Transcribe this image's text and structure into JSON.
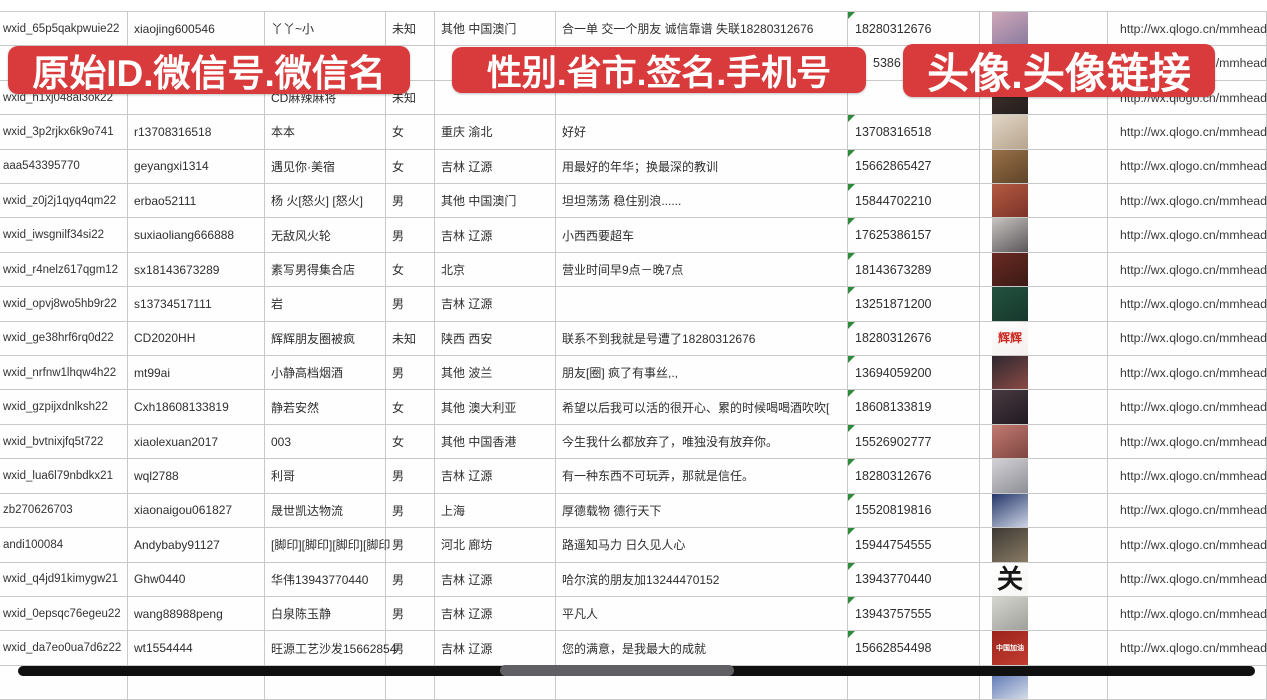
{
  "banners": {
    "background": "#d93b3c",
    "text_color": "#ffffff",
    "left": {
      "label": "原始ID.微信号.微信名"
    },
    "middle": {
      "label": "性别.省市.签名.手机号"
    },
    "right": {
      "label": "头像.头像链接"
    }
  },
  "footer": {
    "bar_color": "#101010",
    "thumb_color": "#5f5f64"
  },
  "table": {
    "rows": [
      {
        "original_id": "wxid_65p5qakpwuie22",
        "wechat_no": "xiaojing600546",
        "wechat_name": "丫丫~小",
        "gender": "未知",
        "province_city": "其他 中国澳门",
        "signature": "合一单 交一个朋友 诚信靠谱 失联18280312676",
        "phone": "18280312676",
        "phone_flag": true,
        "avatar_link": "http://wx.qlogo.cn/mmhead",
        "avatar": {
          "c1": "#cfa8b8",
          "c2": "#8a7aa0"
        }
      },
      {
        "original_id": "",
        "wechat_no": "",
        "wechat_name": "",
        "gender": "",
        "province_city": "",
        "signature": "",
        "phone": "5386",
        "phone_flag": false,
        "phone_indent": 18,
        "avatar_link": "http://wx.qlogo.cn/mmhead",
        "avatar": {
          "c1": "#a8c0dc",
          "c2": "#eef2f8"
        }
      },
      {
        "original_id": "wxid_h1xj048al3ok22",
        "wechat_no": "",
        "wechat_name": "CD麻辣麻将",
        "gender": "未知",
        "province_city": "",
        "signature": "",
        "phone": "",
        "phone_flag": false,
        "avatar_link": "http://wx.qlogo.cn/mmhead",
        "avatar": {
          "c1": "#41342e",
          "c2": "#241d1c"
        }
      },
      {
        "original_id": "wxid_3p2rjkx6k9o741",
        "wechat_no": "r13708316518",
        "wechat_name": "本本",
        "gender": "女",
        "province_city": "重庆 渝北",
        "signature": "好好",
        "phone": "13708316518",
        "phone_flag": true,
        "avatar_link": "http://wx.qlogo.cn/mmhead",
        "avatar": {
          "c1": "#e2d6c6",
          "c2": "#b6a48e"
        }
      },
      {
        "original_id": "aaa543395770",
        "wechat_no": "geyangxi1314",
        "wechat_name": "遇见你·美宿",
        "gender": "女",
        "province_city": "吉林 辽源",
        "signature": "用最好的年华；换最深的教训",
        "phone": "15662865427",
        "phone_flag": true,
        "avatar_link": "http://wx.qlogo.cn/mmhead",
        "avatar": {
          "c1": "#9a7048",
          "c2": "#5e4428"
        }
      },
      {
        "original_id": "wxid_z0j2j1qyq4qm22",
        "wechat_no": "erbao52111",
        "wechat_name": "杨 火[怒火] [怒火]",
        "gender": "男",
        "province_city": "其他 中国澳门",
        "signature": "坦坦荡荡 稳住别浪......",
        "phone": "15844702210",
        "phone_flag": true,
        "avatar_link": "http://wx.qlogo.cn/mmhead",
        "avatar": {
          "c1": "#b55a42",
          "c2": "#7c3328"
        }
      },
      {
        "original_id": "wxid_iwsgnilf34si22",
        "wechat_no": "suxiaoliang666888",
        "wechat_name": "无敌风火轮",
        "gender": "男",
        "province_city": "吉林 辽源",
        "signature": "小西西要超车",
        "phone": "17625386157",
        "phone_flag": true,
        "avatar_link": "http://wx.qlogo.cn/mmhead",
        "avatar": {
          "c1": "#c8c4c0",
          "c2": "#5a565a"
        }
      },
      {
        "original_id": "wxid_r4nelz617qgm12",
        "wechat_no": "sx18143673289",
        "wechat_name": "素写男得集合店",
        "gender": "女",
        "province_city": "北京",
        "signature": "营业时间早9点－晚7点",
        "phone": "18143673289",
        "phone_flag": true,
        "avatar_link": "http://wx.qlogo.cn/mmhead",
        "avatar": {
          "c1": "#6a2a22",
          "c2": "#3c1a16"
        }
      },
      {
        "original_id": "wxid_opvj8wo5hb9r22",
        "wechat_no": "s13734517111",
        "wechat_name": "岩",
        "gender": "男",
        "province_city": "吉林 辽源",
        "signature": "",
        "phone": "13251871200",
        "phone_flag": true,
        "avatar_link": "http://wx.qlogo.cn/mmhead",
        "avatar": {
          "c1": "#235240",
          "c2": "#16382c"
        }
      },
      {
        "original_id": "wxid_ge38hrf6rq0d22",
        "wechat_no": "CD2020HH",
        "wechat_name": "辉辉朋友圈被疯",
        "gender": "未知",
        "province_city": "陕西 西安",
        "signature": "联系不到我就是号遭了18280312676",
        "phone": "18280312676",
        "phone_flag": true,
        "avatar_link": "http://wx.qlogo.cn/mmhead",
        "avatar": {
          "c1": "#ffffff",
          "c2": "#f4f0ee",
          "label": "辉辉",
          "label_color": "#cc2a22",
          "label_size": 12
        }
      },
      {
        "original_id": "wxid_nrfnw1lhqw4h22",
        "wechat_no": "mt99ai",
        "wechat_name": "小静高档烟酒",
        "gender": "男",
        "province_city": "其他 波兰",
        "signature": "朋友[圈] 疯了有事丝,.,",
        "phone": "13694059200",
        "phone_flag": true,
        "avatar_link": "http://wx.qlogo.cn/mmhead",
        "avatar": {
          "c1": "#2e2830",
          "c2": "#8a4a44"
        }
      },
      {
        "original_id": "wxid_gzpijxdnlksh22",
        "wechat_no": "Cxh18608133819",
        "wechat_name": "静若安然",
        "gender": "女",
        "province_city": "其他 澳大利亚",
        "signature": "希望以后我可以活的很开心、累的时候喝喝酒吹吹[",
        "phone": "18608133819",
        "phone_flag": true,
        "avatar_link": "http://wx.qlogo.cn/mmhead",
        "avatar": {
          "c1": "#4a3a42",
          "c2": "#201a20"
        }
      },
      {
        "original_id": "wxid_bvtnixjfq5t722",
        "wechat_no": "xiaolexuan2017",
        "wechat_name": "003",
        "gender": "女",
        "province_city": "其他 中国香港",
        "signature": "今生我什么都放弃了，唯独没有放弃你。",
        "phone": "15526902777",
        "phone_flag": true,
        "avatar_link": "http://wx.qlogo.cn/mmhead",
        "avatar": {
          "c1": "#c27a72",
          "c2": "#7e4640"
        }
      },
      {
        "original_id": "wxid_lua6l79nbdkx21",
        "wechat_no": "wql2788",
        "wechat_name": "利哥",
        "gender": "男",
        "province_city": "吉林 辽源",
        "signature": "有一种东西不可玩弄，那就是信任。",
        "phone": "18280312676",
        "phone_flag": true,
        "avatar_link": "http://wx.qlogo.cn/mmhead",
        "avatar": {
          "c1": "#d2d2d6",
          "c2": "#8e8e96"
        }
      },
      {
        "original_id": "zb270626703",
        "wechat_no": "xiaonaigou061827",
        "wechat_name": "晟世凯达物流",
        "gender": "男",
        "province_city": "上海",
        "signature": "厚德载物 德行天下",
        "phone": "15520819816",
        "phone_flag": true,
        "avatar_link": "http://wx.qlogo.cn/mmhead",
        "avatar": {
          "c1": "#24366a",
          "c2": "#cdd4e4"
        }
      },
      {
        "original_id": "andi100084",
        "wechat_no": "Andybaby91127",
        "wechat_name": "[脚印][脚印][脚印][脚印",
        "gender": "男",
        "province_city": "河北 廊坊",
        "signature": "路遥知马力 日久见人心",
        "phone": "15944754555",
        "phone_flag": true,
        "avatar_link": "http://wx.qlogo.cn/mmhead",
        "avatar": {
          "c1": "#3c3834",
          "c2": "#8a7c64"
        }
      },
      {
        "original_id": "wxid_q4jd91kimygw21",
        "wechat_no": "Ghw0440",
        "wechat_name": "华伟13943770440",
        "gender": "男",
        "province_city": "吉林 辽源",
        "signature": "哈尔滨的朋友加13244470152",
        "phone": "13943770440",
        "phone_flag": true,
        "avatar_link": "http://wx.qlogo.cn/mmhead",
        "avatar": {
          "c1": "#ffffff",
          "c2": "#f6f6f4",
          "label": "关",
          "label_color": "#161616",
          "label_size": 26
        }
      },
      {
        "original_id": "wxid_0epsqc76egeu22",
        "wechat_no": "wang88988peng",
        "wechat_name": "白泉陈玉静",
        "gender": "男",
        "province_city": "吉林 辽源",
        "signature": "平凡人",
        "phone": "13943757555",
        "phone_flag": true,
        "avatar_link": "http://wx.qlogo.cn/mmhead",
        "avatar": {
          "c1": "#d6d6d0",
          "c2": "#a0a09a"
        }
      },
      {
        "original_id": "wxid_da7eo0ua7d6z22",
        "wechat_no": "wt1554444",
        "wechat_name": "旺源工艺沙发15662854",
        "gender": "男",
        "province_city": "吉林 辽源",
        "signature": "您的满意，是我最大的成就",
        "phone": "15662854498",
        "phone_flag": true,
        "avatar_link": "http://wx.qlogo.cn/mmhead",
        "avatar": {
          "c1": "#9c241c",
          "c2": "#c23c30",
          "label": "中国加油",
          "label_color": "#ffffff",
          "label_size": 7
        }
      },
      {
        "original_id": "",
        "wechat_no": "",
        "wechat_name": "",
        "gender": "",
        "province_city": "",
        "signature": "",
        "phone": "",
        "phone_flag": false,
        "avatar_link": "",
        "avatar": {
          "c1": "#4a68ae",
          "c2": "#d6dce8"
        }
      }
    ]
  }
}
